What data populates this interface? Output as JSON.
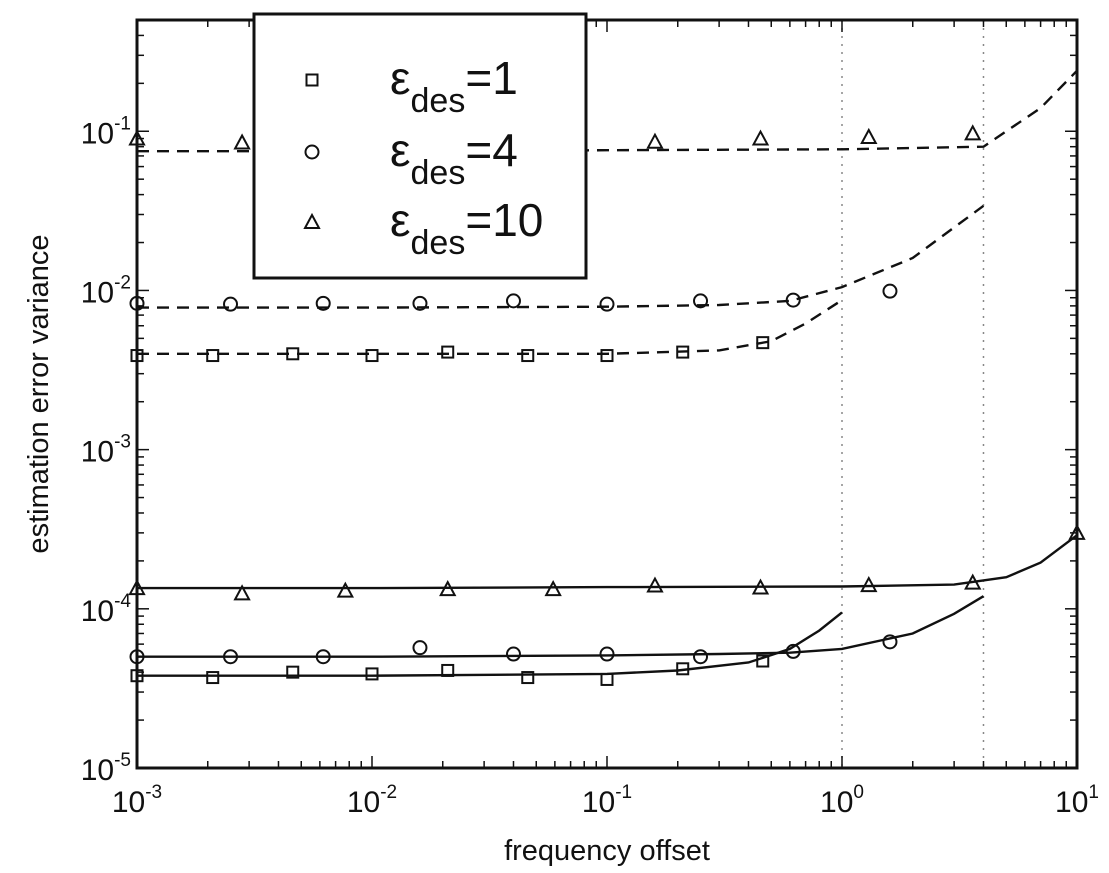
{
  "chart_data": {
    "type": "line",
    "xlabel": "frequency offset",
    "ylabel": "estimation error variance",
    "xscale": "log",
    "yscale": "log",
    "xlim": [
      0.001,
      10
    ],
    "ylim": [
      1e-05,
      0.5
    ],
    "x_ticks": [
      {
        "value": 0.001,
        "base": "10",
        "exp": "-3"
      },
      {
        "value": 0.01,
        "base": "10",
        "exp": "-2"
      },
      {
        "value": 0.1,
        "base": "10",
        "exp": "-1"
      },
      {
        "value": 1,
        "base": "10",
        "exp": "0"
      },
      {
        "value": 10,
        "base": "10",
        "exp": "1"
      }
    ],
    "y_ticks": [
      {
        "value": 1e-05,
        "base": "10",
        "exp": "-5"
      },
      {
        "value": 0.0001,
        "base": "10",
        "exp": "-4"
      },
      {
        "value": 0.001,
        "base": "10",
        "exp": "-3"
      },
      {
        "value": 0.01,
        "base": "10",
        "exp": "-2"
      },
      {
        "value": 0.1,
        "base": "10",
        "exp": "-1"
      }
    ],
    "vertical_guides": [
      1,
      4
    ],
    "legend": {
      "placement": "top-left",
      "entries": [
        {
          "marker": "square",
          "symbol": "ε",
          "sub": "des",
          "value": "=1"
        },
        {
          "marker": "circle",
          "symbol": "ε",
          "sub": "des",
          "value": "=4"
        },
        {
          "marker": "triangle",
          "symbol": "ε",
          "sub": "des",
          "value": "=10"
        }
      ]
    },
    "curves": [
      {
        "group": "dashed",
        "eps": 10,
        "style": "dashed",
        "x": [
          0.001,
          0.01,
          0.1,
          1,
          4,
          7,
          10
        ],
        "y": [
          0.075,
          0.075,
          0.076,
          0.077,
          0.08,
          0.14,
          0.24
        ]
      },
      {
        "group": "dashed",
        "eps": 4,
        "style": "dashed",
        "x": [
          0.001,
          0.01,
          0.1,
          0.3,
          0.6,
          1,
          2,
          4
        ],
        "y": [
          0.0078,
          0.0078,
          0.0079,
          0.0081,
          0.0086,
          0.0105,
          0.016,
          0.034
        ]
      },
      {
        "group": "dashed",
        "eps": 1,
        "style": "dashed",
        "x": [
          0.001,
          0.01,
          0.1,
          0.3,
          0.5,
          0.7,
          1
        ],
        "y": [
          0.004,
          0.004,
          0.004,
          0.0042,
          0.0048,
          0.0062,
          0.0087
        ]
      },
      {
        "group": "solid",
        "eps": 10,
        "style": "solid",
        "x": [
          0.001,
          0.01,
          0.1,
          1,
          3,
          5,
          7,
          10
        ],
        "y": [
          0.000135,
          0.000135,
          0.000137,
          0.000138,
          0.000142,
          0.000158,
          0.000195,
          0.00029
        ]
      },
      {
        "group": "solid",
        "eps": 4,
        "style": "solid",
        "x": [
          0.001,
          0.01,
          0.1,
          0.3,
          0.6,
          1,
          2,
          3,
          4
        ],
        "y": [
          5e-05,
          5e-05,
          5.1e-05,
          5.2e-05,
          5.3e-05,
          5.6e-05,
          7e-05,
          9.3e-05,
          0.00012
        ]
      },
      {
        "group": "solid",
        "eps": 1,
        "style": "solid",
        "x": [
          0.001,
          0.01,
          0.1,
          0.2,
          0.4,
          0.6,
          0.8,
          1
        ],
        "y": [
          3.8e-05,
          3.8e-05,
          3.9e-05,
          4.1e-05,
          4.6e-05,
          5.6e-05,
          7.3e-05,
          9.5e-05
        ]
      }
    ],
    "series": [
      {
        "marker": "triangle",
        "eps": 10,
        "group": "dashed",
        "x": [
          0.001,
          0.0028,
          0.16,
          0.45,
          1.3,
          3.6
        ],
        "y": [
          0.09,
          0.085,
          0.086,
          0.09,
          0.092,
          0.097
        ]
      },
      {
        "marker": "circle",
        "eps": 4,
        "group": "dashed",
        "x": [
          0.001,
          0.0025,
          0.0062,
          0.016,
          0.04,
          0.1,
          0.25,
          0.62,
          1.6
        ],
        "y": [
          0.0083,
          0.0082,
          0.0083,
          0.0083,
          0.0086,
          0.0082,
          0.0086,
          0.0087,
          0.0099
        ]
      },
      {
        "marker": "square",
        "eps": 1,
        "group": "dashed",
        "x": [
          0.001,
          0.0021,
          0.0046,
          0.01,
          0.021,
          0.046,
          0.1,
          0.21,
          0.46
        ],
        "y": [
          0.0039,
          0.0039,
          0.004,
          0.0039,
          0.0041,
          0.0039,
          0.0039,
          0.0041,
          0.0047
        ]
      },
      {
        "marker": "triangle",
        "eps": 10,
        "group": "solid",
        "x": [
          0.001,
          0.0028,
          0.0077,
          0.021,
          0.059,
          0.16,
          0.45,
          1.3,
          3.6,
          10
        ],
        "y": [
          0.000135,
          0.000125,
          0.00013,
          0.000133,
          0.000133,
          0.00014,
          0.000136,
          0.000141,
          0.000146,
          0.0003
        ]
      },
      {
        "marker": "circle",
        "eps": 4,
        "group": "solid",
        "x": [
          0.001,
          0.0025,
          0.0062,
          0.016,
          0.04,
          0.1,
          0.25,
          0.62,
          1.6
        ],
        "y": [
          5e-05,
          5e-05,
          5e-05,
          5.7e-05,
          5.2e-05,
          5.2e-05,
          5e-05,
          5.4e-05,
          6.2e-05
        ]
      },
      {
        "marker": "square",
        "eps": 1,
        "group": "solid",
        "x": [
          0.001,
          0.0021,
          0.0046,
          0.01,
          0.021,
          0.046,
          0.1,
          0.21,
          0.46
        ],
        "y": [
          3.8e-05,
          3.7e-05,
          4e-05,
          3.9e-05,
          4.1e-05,
          3.7e-05,
          3.6e-05,
          4.2e-05,
          4.7e-05
        ]
      }
    ]
  }
}
